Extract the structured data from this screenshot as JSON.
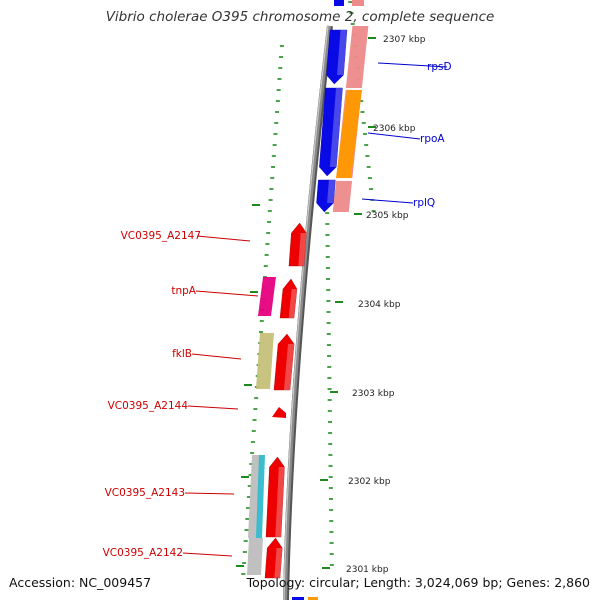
{
  "title": "Vibrio cholerae O395 chromosome 2, complete sequence",
  "footer": {
    "accession": "Accession: NC_009457",
    "summary": "Topology: circular; Length: 3,024,069 bp; Genes: 2,860"
  },
  "colors": {
    "backbone": "#8a8a8a",
    "tick": "#1e8a1e",
    "forward_gene": "#ee0000",
    "reverse_gene": "#0a0ae6",
    "forward_label": "#cc0000",
    "reverse_label": "#0000cc",
    "forward_rna_band": "#ee8a8a",
    "orange_band": "#ff9900",
    "magenta_band": "#e6007e",
    "khaki_band": "#c6c07a",
    "cyan_band": "#33bbcc",
    "grey_band": "#bdbdbd"
  },
  "scale_labels": [
    "2307 kbp",
    "2306 kbp",
    "2305 kbp",
    "2304 kbp",
    "2303 kbp",
    "2302 kbp",
    "2301 kbp"
  ],
  "reverse_genes": [
    {
      "name": "rpsD"
    },
    {
      "name": "rpoA"
    },
    {
      "name": "rplQ"
    }
  ],
  "forward_genes": [
    {
      "name": "VC0395_A2147"
    },
    {
      "name": "tnpA"
    },
    {
      "name": "fklB"
    },
    {
      "name": "VC0395_A2144"
    },
    {
      "name": "VC0395_A2143"
    },
    {
      "name": "VC0395_A2142"
    }
  ]
}
